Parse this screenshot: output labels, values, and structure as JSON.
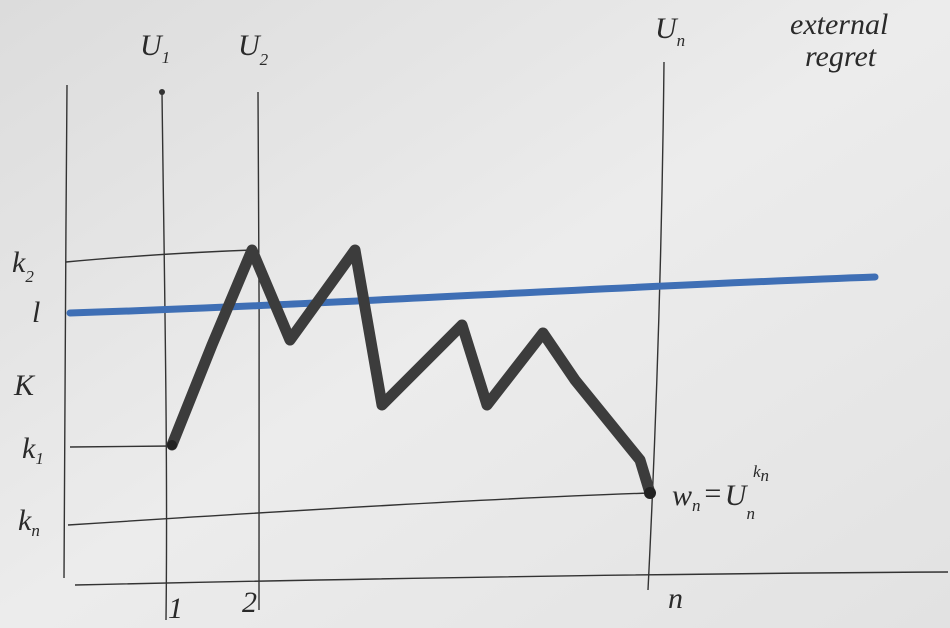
{
  "columns": [
    {
      "base": "U",
      "sub": "1"
    },
    {
      "base": "U",
      "sub": "2"
    },
    {
      "base": "U",
      "sub": "n"
    }
  ],
  "corner_note": {
    "lines": [
      "external",
      "regret"
    ]
  },
  "left_labels": {
    "k2": {
      "base": "k",
      "sub": "2"
    },
    "l": "l",
    "K": "K",
    "k1": {
      "base": "k",
      "sub": "1"
    },
    "kn": {
      "base": "k",
      "sub": "n"
    }
  },
  "bottom_labels": [
    "1",
    "2",
    "n"
  ],
  "endpoint_label": {
    "lhs": {
      "base": "w",
      "sub": "n"
    },
    "equals": "=",
    "rhs": {
      "base": "U",
      "sub": "n",
      "sup": "k",
      "sup_sub": "n"
    }
  }
}
